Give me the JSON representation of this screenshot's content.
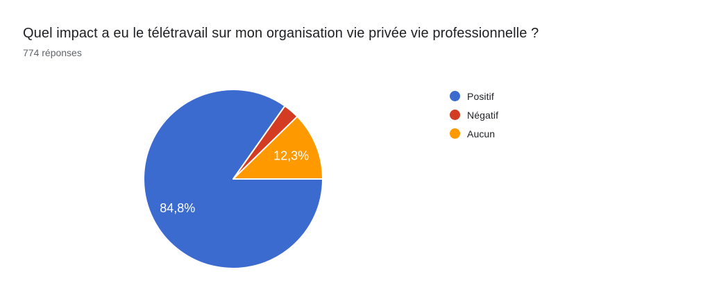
{
  "header": {
    "title": "Quel impact a eu le télétravail sur mon organisation vie privée vie professionnelle ?",
    "responses": "774 réponses"
  },
  "chart_data": {
    "type": "pie",
    "title": "Quel impact a eu le télétravail sur mon organisation vie privée vie professionnelle ?",
    "subtitle": "774 réponses",
    "total_responses": 774,
    "categories": [
      "Positif",
      "Négatif",
      "Aucun"
    ],
    "values": [
      84.8,
      2.9,
      12.3
    ],
    "slice_labels": [
      "84,8%",
      "",
      "12,3%"
    ],
    "colors": [
      "#3C6BD0",
      "#D33B22",
      "#FF9900"
    ],
    "slice_label_color": "#ffffff",
    "slice_border_color": "#ffffff",
    "legend_position": "right",
    "start_angle_deg": 0,
    "direction": "clockwise",
    "min_label_pct": 5
  }
}
